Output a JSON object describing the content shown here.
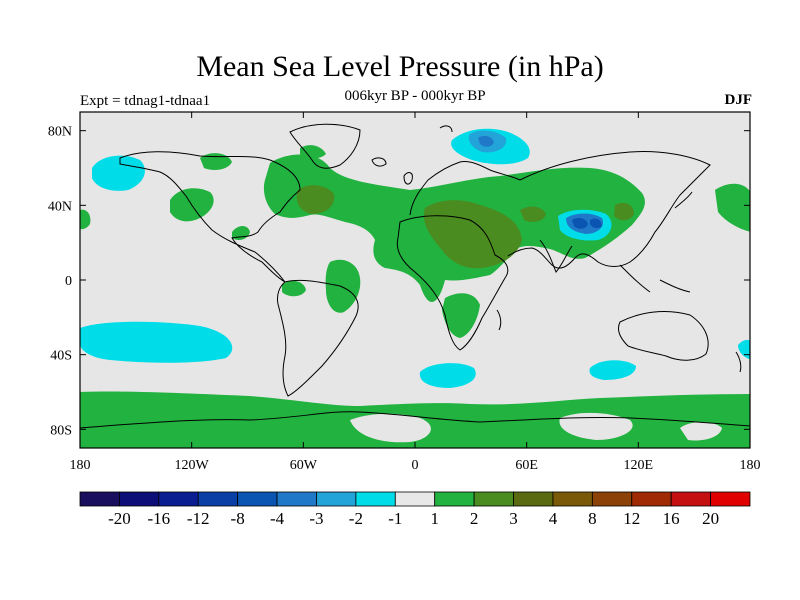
{
  "title": "Mean Sea Level Pressure (in hPa)",
  "subtitle": "006kyr BP - 000kyr BP",
  "experiment": "Expt = tdnag1-tdnaa1",
  "season": "DJF",
  "chart_data": {
    "type": "heatmap",
    "projection": "cylindrical-equidistant",
    "title": "Mean Sea Level Pressure (in hPa)",
    "subtitle": "006kyr BP - 000kyr BP",
    "x_range": [
      -180,
      180
    ],
    "y_range": [
      -90,
      90
    ],
    "x_ticks": [
      {
        "value": -180,
        "label": "180"
      },
      {
        "value": -120,
        "label": "120W"
      },
      {
        "value": -60,
        "label": "60W"
      },
      {
        "value": 0,
        "label": "0"
      },
      {
        "value": 60,
        "label": "60E"
      },
      {
        "value": 120,
        "label": "120E"
      },
      {
        "value": 180,
        "label": "180"
      }
    ],
    "y_ticks": [
      {
        "value": 80,
        "label": "80N"
      },
      {
        "value": 40,
        "label": "40N"
      },
      {
        "value": 0,
        "label": "0"
      },
      {
        "value": -40,
        "label": "40S"
      },
      {
        "value": -80,
        "label": "80S"
      }
    ],
    "colorbar": {
      "colors": [
        "#1a0f5e",
        "#0d0e78",
        "#0a1e92",
        "#0a3fa6",
        "#0b55b2",
        "#1f79c8",
        "#22a4d8",
        "#00dde8",
        "#e8e8e8",
        "#22b240",
        "#4a8c20",
        "#5a6a10",
        "#7a5a08",
        "#8c4206",
        "#a02a04",
        "#c41010",
        "#e00000"
      ],
      "labels": [
        "-20",
        "-16",
        "-12",
        "-8",
        "-4",
        "-3",
        "-2",
        "-1",
        "1",
        "2",
        "3",
        "4",
        "8",
        "12",
        "16",
        "20"
      ]
    },
    "background_color": "#e6e6e6",
    "regions": [
      {
        "name": "North Atlantic-Eurasia-Africa positive band",
        "level": "1 to 2",
        "color": "#22b240",
        "lon": [
          -50,
          130
        ],
        "lat": [
          0,
          62
        ]
      },
      {
        "name": "Sahara-Arabia positive core",
        "level": "2 to 3",
        "color": "#4a8c20",
        "lon": [
          10,
          60
        ],
        "lat": [
          5,
          40
        ]
      },
      {
        "name": "Northeast America positive core",
        "level": "2 to 3",
        "color": "#4a8c20",
        "lon": [
          -78,
          -50
        ],
        "lat": [
          35,
          50
        ]
      },
      {
        "name": "North Pacific negative",
        "level": "-1 to -2",
        "color": "#00dde8",
        "lon": [
          -170,
          -142
        ],
        "lat": [
          48,
          62
        ]
      },
      {
        "name": "Barents Sea negative",
        "level": "-2 to -3",
        "color": "#22a4d8",
        "lon": [
          10,
          55
        ],
        "lat": [
          68,
          82
        ]
      },
      {
        "name": "Tibetan Plateau negative",
        "level": "-3 to -8",
        "color": "#0b55b2",
        "lon": [
          75,
          100
        ],
        "lat": [
          25,
          40
        ]
      },
      {
        "name": "South Pacific negative",
        "level": "-1 to -2",
        "color": "#00dde8",
        "lon": [
          -178,
          -102
        ],
        "lat": [
          -45,
          -25
        ]
      },
      {
        "name": "South Atlantic negative",
        "level": "-1 to -2",
        "color": "#00dde8",
        "lon": [
          2,
          34
        ],
        "lat": [
          -55,
          -43
        ]
      },
      {
        "name": "South Indian negative",
        "level": "-1 to -2",
        "color": "#00dde8",
        "lon": [
          93,
          120
        ],
        "lat": [
          -52,
          -42
        ]
      },
      {
        "name": "Southern Ocean positive belt",
        "level": "1 to 2",
        "color": "#22b240",
        "lon": [
          -180,
          180
        ],
        "lat": [
          -90,
          -58
        ]
      },
      {
        "name": "South America positive",
        "level": "1 to 2",
        "color": "#22b240",
        "lon": [
          -70,
          -35
        ],
        "lat": [
          -30,
          -3
        ]
      },
      {
        "name": "Southern Africa positive",
        "level": "1 to 2",
        "color": "#22b240",
        "lon": [
          15,
          40
        ],
        "lat": [
          -30,
          -5
        ]
      }
    ]
  }
}
